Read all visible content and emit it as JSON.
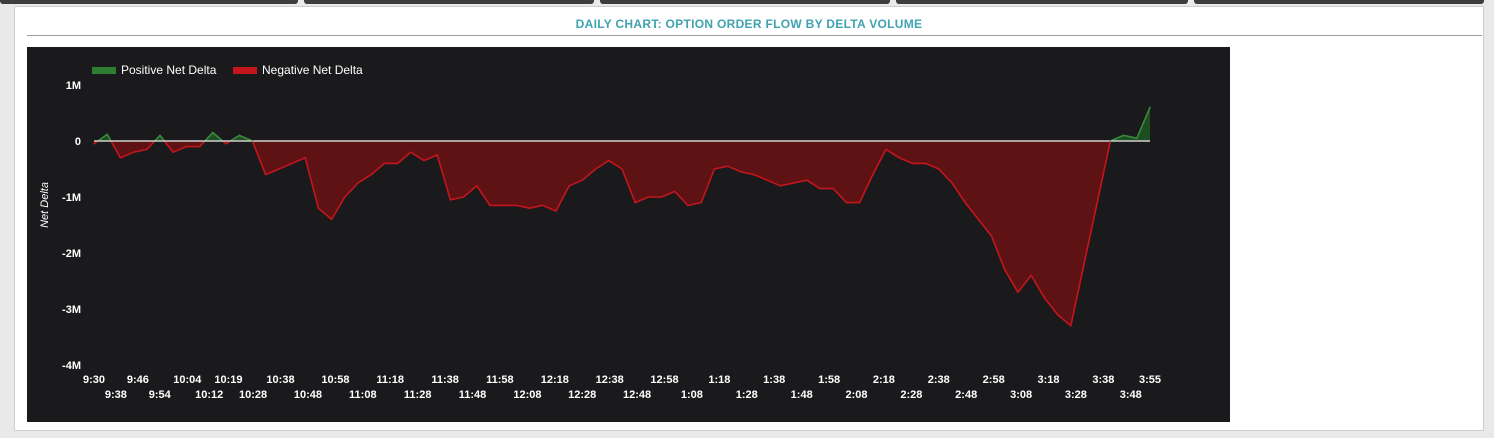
{
  "panel": {
    "title": "DAILY CHART: OPTION ORDER FLOW BY DELTA VOLUME"
  },
  "colors": {
    "positive": "#2e7d32",
    "negative": "#c4151c",
    "negative_fill": "#5e1214",
    "background": "#1a1a1c",
    "title": "#3fa3b0"
  },
  "chart_data": {
    "type": "area",
    "title": "DAILY CHART: OPTION ORDER FLOW BY DELTA VOLUME",
    "xlabel": "",
    "ylabel": "Net Delta",
    "ylim": [
      -4000000,
      1000000
    ],
    "y_ticks": [
      1000000,
      0,
      -1000000,
      -2000000,
      -3000000,
      -4000000
    ],
    "y_tick_labels": [
      "1M",
      "0",
      "-1M",
      "-2M",
      "-3M",
      "-4M"
    ],
    "x_tick_labels": [
      "9:30",
      "9:38",
      "9:46",
      "9:54",
      "10:04",
      "10:12",
      "10:19",
      "10:28",
      "10:38",
      "10:48",
      "10:58",
      "11:08",
      "11:18",
      "11:28",
      "11:38",
      "11:48",
      "11:58",
      "12:08",
      "12:18",
      "12:28",
      "12:38",
      "12:48",
      "12:58",
      "1:08",
      "1:18",
      "1:28",
      "1:38",
      "1:48",
      "1:58",
      "2:08",
      "2:18",
      "2:28",
      "2:38",
      "2:48",
      "2:58",
      "3:08",
      "3:18",
      "3:28",
      "3:38",
      "3:48",
      "3:55"
    ],
    "legend": [
      "Positive Net Delta",
      "Negative Net Delta"
    ],
    "legend_position": "top-left",
    "grid": false,
    "x": [
      "9:30",
      "9:34",
      "9:38",
      "9:42",
      "9:46",
      "9:50",
      "9:54",
      "9:58",
      "10:04",
      "10:08",
      "10:12",
      "10:16",
      "10:19",
      "10:24",
      "10:28",
      "10:33",
      "10:38",
      "10:43",
      "10:48",
      "10:53",
      "10:58",
      "11:03",
      "11:08",
      "11:13",
      "11:18",
      "11:23",
      "11:28",
      "11:33",
      "11:38",
      "11:43",
      "11:48",
      "11:53",
      "11:58",
      "12:03",
      "12:08",
      "12:13",
      "12:18",
      "12:23",
      "12:28",
      "12:33",
      "12:38",
      "12:43",
      "12:48",
      "12:53",
      "12:58",
      "1:03",
      "1:08",
      "1:13",
      "1:18",
      "1:23",
      "1:28",
      "1:33",
      "1:38",
      "1:43",
      "1:48",
      "1:53",
      "1:58",
      "2:03",
      "2:08",
      "2:13",
      "2:18",
      "2:23",
      "2:28",
      "2:33",
      "2:38",
      "2:43",
      "2:48",
      "2:53",
      "2:58",
      "3:03",
      "3:08",
      "3:13",
      "3:18",
      "3:23",
      "3:28",
      "3:33",
      "3:38",
      "3:43",
      "3:48",
      "3:52",
      "3:55"
    ],
    "values": [
      -50000,
      120000,
      -300000,
      -200000,
      -150000,
      100000,
      -200000,
      -100000,
      -100000,
      150000,
      -50000,
      100000,
      0,
      -600000,
      -500000,
      -400000,
      -300000,
      -1200000,
      -1400000,
      -1000000,
      -750000,
      -600000,
      -400000,
      -400000,
      -200000,
      -350000,
      -250000,
      -1050000,
      -1000000,
      -800000,
      -1150000,
      -1150000,
      -1150000,
      -1200000,
      -1150000,
      -1250000,
      -800000,
      -700000,
      -500000,
      -350000,
      -500000,
      -1100000,
      -1000000,
      -1000000,
      -900000,
      -1150000,
      -1100000,
      -500000,
      -450000,
      -550000,
      -600000,
      -700000,
      -800000,
      -750000,
      -700000,
      -850000,
      -850000,
      -1100000,
      -1100000,
      -600000,
      -150000,
      -300000,
      -400000,
      -400000,
      -500000,
      -750000,
      -1100000,
      -1400000,
      -1700000,
      -2300000,
      -2700000,
      -2400000,
      -2800000,
      -3100000,
      -3300000,
      -2200000,
      -1100000,
      0,
      100000,
      50000,
      600000
    ]
  }
}
